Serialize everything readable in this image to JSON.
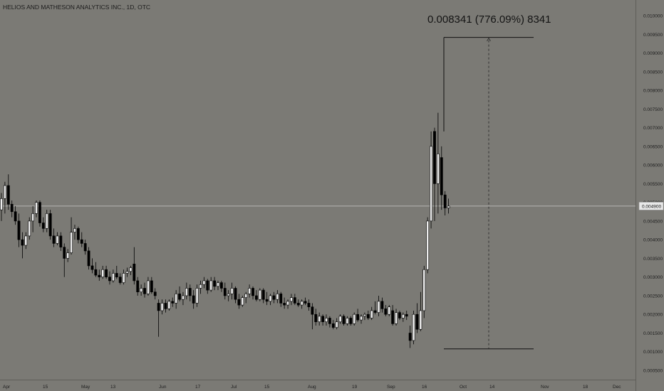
{
  "header": {
    "symbol_title": "HELIOS AND MATHESON ANALYTICS INC., 1D, OTC"
  },
  "measure": {
    "label": "0.008341 (776.09%) 8341",
    "from": 0.001075,
    "to": 0.009416
  },
  "price_tag": {
    "value": "0.004900",
    "price": 0.0049
  },
  "colors": {
    "background": "#7b7a75",
    "up_body": "#eeeeee",
    "down_body": "#000000",
    "wick": "#000000",
    "axis_text": "#1e1e1e",
    "crosshair": "#c8c8c8"
  },
  "chart_data": {
    "type": "candlestick",
    "title": "HELIOS AND MATHESON ANALYTICS INC., 1D, OTC",
    "ylim": [
      0.0004,
      0.0102
    ],
    "y_ticks": [
      "0.010000",
      "0.009500",
      "0.009000",
      "0.008500",
      "0.008000",
      "0.007500",
      "0.007000",
      "0.006500",
      "0.006000",
      "0.005500",
      "0.005000",
      "0.004500",
      "0.004000",
      "0.003500",
      "0.003000",
      "0.002500",
      "0.002000",
      "0.001500",
      "0.001000",
      "0.000500"
    ],
    "x_ticks": [
      "Apr",
      "15",
      "May",
      "13",
      "Jun",
      "17",
      "Jul",
      "15",
      "Aug",
      "19",
      "Sep",
      "16",
      "Oct",
      "14",
      "Nov",
      "18",
      "Dec"
    ],
    "grid": false,
    "candles": [
      {
        "o": 0.0048,
        "h": 0.00525,
        "l": 0.0045,
        "c": 0.0051
      },
      {
        "o": 0.0051,
        "h": 0.00555,
        "l": 0.0047,
        "c": 0.00545
      },
      {
        "o": 0.00545,
        "h": 0.00575,
        "l": 0.0048,
        "c": 0.00495
      },
      {
        "o": 0.00495,
        "h": 0.00505,
        "l": 0.0046,
        "c": 0.00475
      },
      {
        "o": 0.00475,
        "h": 0.0049,
        "l": 0.0044,
        "c": 0.0045
      },
      {
        "o": 0.0045,
        "h": 0.0047,
        "l": 0.0038,
        "c": 0.004
      },
      {
        "o": 0.004,
        "h": 0.0042,
        "l": 0.0035,
        "c": 0.00385
      },
      {
        "o": 0.00385,
        "h": 0.0042,
        "l": 0.00375,
        "c": 0.0041
      },
      {
        "o": 0.0041,
        "h": 0.0046,
        "l": 0.004,
        "c": 0.0045
      },
      {
        "o": 0.0045,
        "h": 0.0049,
        "l": 0.0042,
        "c": 0.0047
      },
      {
        "o": 0.0047,
        "h": 0.00505,
        "l": 0.0046,
        "c": 0.005
      },
      {
        "o": 0.005,
        "h": 0.00505,
        "l": 0.00435,
        "c": 0.00445
      },
      {
        "o": 0.00445,
        "h": 0.0046,
        "l": 0.0042,
        "c": 0.0043
      },
      {
        "o": 0.0043,
        "h": 0.0048,
        "l": 0.0042,
        "c": 0.0047
      },
      {
        "o": 0.0047,
        "h": 0.0048,
        "l": 0.004,
        "c": 0.0041
      },
      {
        "o": 0.0041,
        "h": 0.0043,
        "l": 0.0038,
        "c": 0.0039
      },
      {
        "o": 0.0039,
        "h": 0.0042,
        "l": 0.00385,
        "c": 0.0041
      },
      {
        "o": 0.0041,
        "h": 0.0042,
        "l": 0.0037,
        "c": 0.0038
      },
      {
        "o": 0.0038,
        "h": 0.0039,
        "l": 0.003,
        "c": 0.0035
      },
      {
        "o": 0.0035,
        "h": 0.00375,
        "l": 0.0034,
        "c": 0.00365
      },
      {
        "o": 0.00365,
        "h": 0.0046,
        "l": 0.0036,
        "c": 0.0042
      },
      {
        "o": 0.0042,
        "h": 0.0044,
        "l": 0.004,
        "c": 0.0043
      },
      {
        "o": 0.0043,
        "h": 0.00435,
        "l": 0.0039,
        "c": 0.004
      },
      {
        "o": 0.004,
        "h": 0.0042,
        "l": 0.0038,
        "c": 0.0039
      },
      {
        "o": 0.0039,
        "h": 0.004,
        "l": 0.0036,
        "c": 0.0037
      },
      {
        "o": 0.0037,
        "h": 0.0038,
        "l": 0.0032,
        "c": 0.0033
      },
      {
        "o": 0.0033,
        "h": 0.0035,
        "l": 0.0031,
        "c": 0.0032
      },
      {
        "o": 0.0032,
        "h": 0.0034,
        "l": 0.003,
        "c": 0.00305
      },
      {
        "o": 0.00305,
        "h": 0.0032,
        "l": 0.0029,
        "c": 0.003
      },
      {
        "o": 0.003,
        "h": 0.0033,
        "l": 0.00295,
        "c": 0.0032
      },
      {
        "o": 0.0032,
        "h": 0.0033,
        "l": 0.00295,
        "c": 0.003
      },
      {
        "o": 0.003,
        "h": 0.00315,
        "l": 0.0028,
        "c": 0.0029
      },
      {
        "o": 0.0029,
        "h": 0.0032,
        "l": 0.00285,
        "c": 0.0031
      },
      {
        "o": 0.0031,
        "h": 0.0033,
        "l": 0.00295,
        "c": 0.003
      },
      {
        "o": 0.003,
        "h": 0.0031,
        "l": 0.0028,
        "c": 0.00285
      },
      {
        "o": 0.00285,
        "h": 0.0032,
        "l": 0.0028,
        "c": 0.0031
      },
      {
        "o": 0.0031,
        "h": 0.00325,
        "l": 0.003,
        "c": 0.00315
      },
      {
        "o": 0.00315,
        "h": 0.0033,
        "l": 0.00305,
        "c": 0.00325
      },
      {
        "o": 0.00335,
        "h": 0.0038,
        "l": 0.0028,
        "c": 0.0029
      },
      {
        "o": 0.0029,
        "h": 0.003,
        "l": 0.0025,
        "c": 0.0026
      },
      {
        "o": 0.0026,
        "h": 0.0028,
        "l": 0.0025,
        "c": 0.0027
      },
      {
        "o": 0.0027,
        "h": 0.00285,
        "l": 0.00245,
        "c": 0.00255
      },
      {
        "o": 0.00255,
        "h": 0.003,
        "l": 0.0025,
        "c": 0.0029
      },
      {
        "o": 0.0029,
        "h": 0.003,
        "l": 0.00255,
        "c": 0.0026
      },
      {
        "o": 0.0026,
        "h": 0.0027,
        "l": 0.0024,
        "c": 0.0025
      },
      {
        "o": 0.0023,
        "h": 0.0024,
        "l": 0.0014,
        "c": 0.0021
      },
      {
        "o": 0.0021,
        "h": 0.0024,
        "l": 0.002,
        "c": 0.0023
      },
      {
        "o": 0.0023,
        "h": 0.0024,
        "l": 0.00205,
        "c": 0.00215
      },
      {
        "o": 0.00215,
        "h": 0.0024,
        "l": 0.0021,
        "c": 0.00235
      },
      {
        "o": 0.00235,
        "h": 0.00245,
        "l": 0.0022,
        "c": 0.0023
      },
      {
        "o": 0.0023,
        "h": 0.00265,
        "l": 0.00215,
        "c": 0.00255
      },
      {
        "o": 0.00255,
        "h": 0.00275,
        "l": 0.00235,
        "c": 0.0024
      },
      {
        "o": 0.0024,
        "h": 0.0026,
        "l": 0.00225,
        "c": 0.0025
      },
      {
        "o": 0.0025,
        "h": 0.00285,
        "l": 0.0024,
        "c": 0.0027
      },
      {
        "o": 0.0027,
        "h": 0.0028,
        "l": 0.00235,
        "c": 0.0025
      },
      {
        "o": 0.0025,
        "h": 0.00265,
        "l": 0.00215,
        "c": 0.0023
      },
      {
        "o": 0.0023,
        "h": 0.0028,
        "l": 0.0022,
        "c": 0.0027
      },
      {
        "o": 0.0027,
        "h": 0.0029,
        "l": 0.00255,
        "c": 0.0028
      },
      {
        "o": 0.0028,
        "h": 0.003,
        "l": 0.0027,
        "c": 0.0029
      },
      {
        "o": 0.0029,
        "h": 0.00295,
        "l": 0.00255,
        "c": 0.00265
      },
      {
        "o": 0.00265,
        "h": 0.003,
        "l": 0.0026,
        "c": 0.0029
      },
      {
        "o": 0.0029,
        "h": 0.003,
        "l": 0.00265,
        "c": 0.00275
      },
      {
        "o": 0.00275,
        "h": 0.0029,
        "l": 0.00265,
        "c": 0.00285
      },
      {
        "o": 0.00285,
        "h": 0.0029,
        "l": 0.0026,
        "c": 0.0027
      },
      {
        "o": 0.0027,
        "h": 0.00285,
        "l": 0.0024,
        "c": 0.0025
      },
      {
        "o": 0.0025,
        "h": 0.00265,
        "l": 0.00235,
        "c": 0.00255
      },
      {
        "o": 0.00255,
        "h": 0.00285,
        "l": 0.0024,
        "c": 0.0027
      },
      {
        "o": 0.0027,
        "h": 0.00275,
        "l": 0.0023,
        "c": 0.0024
      },
      {
        "o": 0.0024,
        "h": 0.00255,
        "l": 0.00215,
        "c": 0.00225
      },
      {
        "o": 0.00225,
        "h": 0.0025,
        "l": 0.0022,
        "c": 0.00245
      },
      {
        "o": 0.00245,
        "h": 0.0026,
        "l": 0.0023,
        "c": 0.00255
      },
      {
        "o": 0.00255,
        "h": 0.0028,
        "l": 0.00245,
        "c": 0.0027
      },
      {
        "o": 0.0027,
        "h": 0.00275,
        "l": 0.0024,
        "c": 0.0025
      },
      {
        "o": 0.0025,
        "h": 0.00265,
        "l": 0.00235,
        "c": 0.0024
      },
      {
        "o": 0.0024,
        "h": 0.0027,
        "l": 0.00235,
        "c": 0.00265
      },
      {
        "o": 0.00265,
        "h": 0.0027,
        "l": 0.0023,
        "c": 0.0024
      },
      {
        "o": 0.0024,
        "h": 0.0026,
        "l": 0.00225,
        "c": 0.00235
      },
      {
        "o": 0.00235,
        "h": 0.00255,
        "l": 0.00225,
        "c": 0.0025
      },
      {
        "o": 0.0025,
        "h": 0.0026,
        "l": 0.0023,
        "c": 0.0024
      },
      {
        "o": 0.0024,
        "h": 0.00265,
        "l": 0.0023,
        "c": 0.00255
      },
      {
        "o": 0.00255,
        "h": 0.0026,
        "l": 0.0022,
        "c": 0.0023
      },
      {
        "o": 0.0023,
        "h": 0.00245,
        "l": 0.00215,
        "c": 0.00225
      },
      {
        "o": 0.00225,
        "h": 0.0024,
        "l": 0.00215,
        "c": 0.00235
      },
      {
        "o": 0.00235,
        "h": 0.00255,
        "l": 0.00225,
        "c": 0.00245
      },
      {
        "o": 0.00245,
        "h": 0.00255,
        "l": 0.00225,
        "c": 0.0023
      },
      {
        "o": 0.0023,
        "h": 0.0024,
        "l": 0.0022,
        "c": 0.00225
      },
      {
        "o": 0.00225,
        "h": 0.0024,
        "l": 0.00215,
        "c": 0.00235
      },
      {
        "o": 0.00235,
        "h": 0.00245,
        "l": 0.00225,
        "c": 0.0023
      },
      {
        "o": 0.0023,
        "h": 0.0024,
        "l": 0.0021,
        "c": 0.0022
      },
      {
        "o": 0.0022,
        "h": 0.0023,
        "l": 0.0016,
        "c": 0.002
      },
      {
        "o": 0.002,
        "h": 0.00215,
        "l": 0.0017,
        "c": 0.0018
      },
      {
        "o": 0.0018,
        "h": 0.00205,
        "l": 0.0017,
        "c": 0.00195
      },
      {
        "o": 0.00195,
        "h": 0.002,
        "l": 0.0017,
        "c": 0.0018
      },
      {
        "o": 0.0018,
        "h": 0.002,
        "l": 0.0017,
        "c": 0.0019
      },
      {
        "o": 0.0019,
        "h": 0.00195,
        "l": 0.00165,
        "c": 0.00175
      },
      {
        "o": 0.00175,
        "h": 0.00185,
        "l": 0.0016,
        "c": 0.00165
      },
      {
        "o": 0.00165,
        "h": 0.0019,
        "l": 0.0016,
        "c": 0.0018
      },
      {
        "o": 0.0018,
        "h": 0.002,
        "l": 0.00175,
        "c": 0.00195
      },
      {
        "o": 0.00195,
        "h": 0.002,
        "l": 0.0017,
        "c": 0.00175
      },
      {
        "o": 0.00175,
        "h": 0.00195,
        "l": 0.0017,
        "c": 0.0019
      },
      {
        "o": 0.0019,
        "h": 0.00195,
        "l": 0.0017,
        "c": 0.00175
      },
      {
        "o": 0.00175,
        "h": 0.00205,
        "l": 0.0017,
        "c": 0.002
      },
      {
        "o": 0.002,
        "h": 0.00215,
        "l": 0.0018,
        "c": 0.00185
      },
      {
        "o": 0.00185,
        "h": 0.002,
        "l": 0.00175,
        "c": 0.00195
      },
      {
        "o": 0.00195,
        "h": 0.00205,
        "l": 0.00185,
        "c": 0.002
      },
      {
        "o": 0.002,
        "h": 0.0021,
        "l": 0.00185,
        "c": 0.0019
      },
      {
        "o": 0.0019,
        "h": 0.0022,
        "l": 0.00185,
        "c": 0.0021
      },
      {
        "o": 0.0021,
        "h": 0.00235,
        "l": 0.002,
        "c": 0.00205
      },
      {
        "o": 0.00205,
        "h": 0.0025,
        "l": 0.00195,
        "c": 0.00235
      },
      {
        "o": 0.00235,
        "h": 0.00245,
        "l": 0.00205,
        "c": 0.00215
      },
      {
        "o": 0.00215,
        "h": 0.00225,
        "l": 0.00195,
        "c": 0.002
      },
      {
        "o": 0.002,
        "h": 0.00225,
        "l": 0.00195,
        "c": 0.0022
      },
      {
        "o": 0.0021,
        "h": 0.00225,
        "l": 0.0017,
        "c": 0.00175
      },
      {
        "o": 0.00175,
        "h": 0.00215,
        "l": 0.0017,
        "c": 0.00205
      },
      {
        "o": 0.00205,
        "h": 0.0021,
        "l": 0.00185,
        "c": 0.0019
      },
      {
        "o": 0.0019,
        "h": 0.00205,
        "l": 0.0018,
        "c": 0.002
      },
      {
        "o": 0.002,
        "h": 0.0021,
        "l": 0.00185,
        "c": 0.00195
      },
      {
        "o": 0.0015,
        "h": 0.0017,
        "l": 0.0011,
        "c": 0.0013
      },
      {
        "o": 0.0013,
        "h": 0.0021,
        "l": 0.0012,
        "c": 0.002
      },
      {
        "o": 0.002,
        "h": 0.0023,
        "l": 0.0015,
        "c": 0.0016
      },
      {
        "o": 0.0016,
        "h": 0.0026,
        "l": 0.00155,
        "c": 0.0021
      },
      {
        "o": 0.0021,
        "h": 0.0033,
        "l": 0.0019,
        "c": 0.0032
      },
      {
        "o": 0.0032,
        "h": 0.0046,
        "l": 0.0031,
        "c": 0.0045
      },
      {
        "o": 0.0045,
        "h": 0.0069,
        "l": 0.0043,
        "c": 0.0065
      },
      {
        "o": 0.0069,
        "h": 0.007,
        "l": 0.0045,
        "c": 0.0055
      },
      {
        "o": 0.0055,
        "h": 0.0074,
        "l": 0.0047,
        "c": 0.0063
      },
      {
        "o": 0.0062,
        "h": 0.0065,
        "l": 0.0048,
        "c": 0.0052
      },
      {
        "o": 0.0052,
        "h": 0.0053,
        "l": 0.00465,
        "c": 0.00485
      },
      {
        "o": 0.00485,
        "h": 0.0051,
        "l": 0.0047,
        "c": 0.0049
      }
    ]
  }
}
